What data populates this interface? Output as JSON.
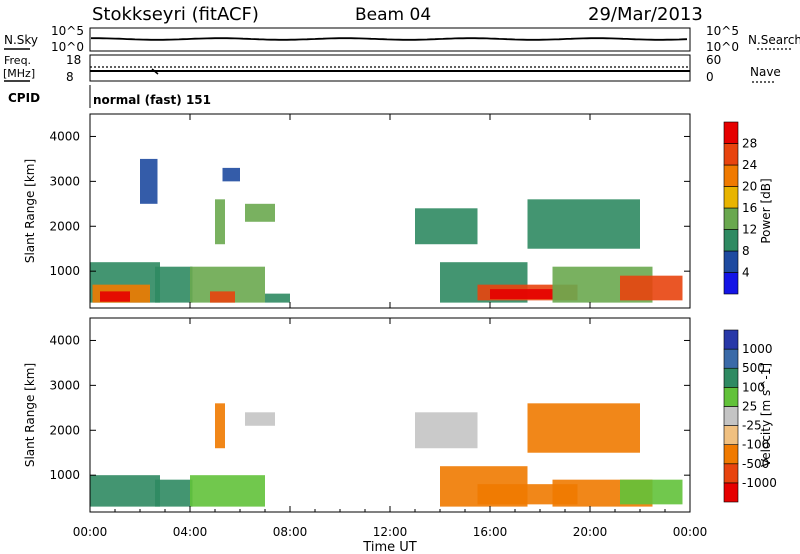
{
  "header": {
    "station": "Stokkseyri (fitACF)",
    "beam": "Beam 04",
    "date": "29/Mar/2013"
  },
  "summary_panels": {
    "nsky_label": "N.Sky",
    "nsky_ticks": [
      "10^5",
      "10^0"
    ],
    "nsearch_label": "N.Search",
    "nsearch_ticks": [
      "10^5",
      "10^0"
    ],
    "freq_label_1": "Freq.",
    "freq_label_2": "[MHz]",
    "freq_ticks": [
      "18",
      "8"
    ],
    "nave_label": "Nave",
    "nave_ticks": [
      "60",
      "0"
    ],
    "cpid_label": "CPID",
    "cpid_value": "normal (fast) 151"
  },
  "colors": {
    "power_scale": [
      "#1414e6",
      "#1e4aa0",
      "#2f8a62",
      "#6aa84f",
      "#e8b400",
      "#f07a00",
      "#e8440e",
      "#e60000"
    ],
    "velocity_scale": [
      "#2838a8",
      "#3a6aa8",
      "#2f8a62",
      "#62c23a",
      "#c4c4c4",
      "#f0c080",
      "#f07a00",
      "#e8440e",
      "#e60000"
    ]
  },
  "chart_data": [
    {
      "type": "heatmap",
      "name": "power",
      "ylabel": "Slant Range [km]",
      "yticks": [
        "1000",
        "2000",
        "3000",
        "4000"
      ],
      "ylim": [
        180,
        4500
      ],
      "xlim": [
        0,
        24
      ],
      "colorbar_label": "Power [dB]",
      "colorbar_ticks": [
        "4",
        "8",
        "12",
        "16",
        "20",
        "24",
        "28"
      ],
      "clim": [
        0,
        30
      ],
      "regions": [
        {
          "x": [
            0.0,
            2.8
          ],
          "y": [
            300,
            1200
          ],
          "v": 8
        },
        {
          "x": [
            0.1,
            2.4
          ],
          "y": [
            300,
            700
          ],
          "v": 22
        },
        {
          "x": [
            0.4,
            1.6
          ],
          "y": [
            320,
            550
          ],
          "v": 28
        },
        {
          "x": [
            2.6,
            4.1
          ],
          "y": [
            300,
            1100
          ],
          "v": 8
        },
        {
          "x": [
            2.0,
            2.7
          ],
          "y": [
            2500,
            3500
          ],
          "v": 6
        },
        {
          "x": [
            4.0,
            7.0
          ],
          "y": [
            300,
            1100
          ],
          "v": 12
        },
        {
          "x": [
            4.8,
            5.8
          ],
          "y": [
            300,
            550
          ],
          "v": 26
        },
        {
          "x": [
            5.0,
            5.4
          ],
          "y": [
            1600,
            2600
          ],
          "v": 12
        },
        {
          "x": [
            5.3,
            6.0
          ],
          "y": [
            3000,
            3300
          ],
          "v": 6
        },
        {
          "x": [
            6.2,
            7.4
          ],
          "y": [
            2100,
            2500
          ],
          "v": 12
        },
        {
          "x": [
            7.0,
            8.0
          ],
          "y": [
            300,
            500
          ],
          "v": 10
        },
        {
          "x": [
            13.0,
            15.5
          ],
          "y": [
            1600,
            2400
          ],
          "v": 10
        },
        {
          "x": [
            14.0,
            17.5
          ],
          "y": [
            300,
            1200
          ],
          "v": 10
        },
        {
          "x": [
            15.5,
            19.5
          ],
          "y": [
            350,
            700
          ],
          "v": 26
        },
        {
          "x": [
            16.0,
            18.5
          ],
          "y": [
            380,
            600
          ],
          "v": 29
        },
        {
          "x": [
            17.5,
            22.0
          ],
          "y": [
            1500,
            2600
          ],
          "v": 10
        },
        {
          "x": [
            18.5,
            22.5
          ],
          "y": [
            300,
            1100
          ],
          "v": 14
        },
        {
          "x": [
            21.2,
            23.7
          ],
          "y": [
            350,
            900
          ],
          "v": 24
        }
      ]
    },
    {
      "type": "heatmap",
      "name": "velocity",
      "ylabel": "Slant Range [km]",
      "yticks": [
        "1000",
        "2000",
        "3000",
        "4000"
      ],
      "ylim": [
        180,
        4500
      ],
      "xlim": [
        0,
        24
      ],
      "xlabel": "Time UT",
      "xticks": [
        "00:00",
        "04:00",
        "08:00",
        "12:00",
        "16:00",
        "20:00",
        "00:00"
      ],
      "colorbar_label": "Velocity [m s^-1]",
      "colorbar_ticks": [
        "1000",
        "500",
        "100",
        "25",
        "-25",
        "-100",
        "-500",
        "-1000"
      ],
      "regions": [
        {
          "x": [
            0.0,
            2.8
          ],
          "y": [
            300,
            1000
          ],
          "v": 100
        },
        {
          "x": [
            2.6,
            4.1
          ],
          "y": [
            300,
            900
          ],
          "v": 100
        },
        {
          "x": [
            4.0,
            7.0
          ],
          "y": [
            300,
            1000
          ],
          "v": 80
        },
        {
          "x": [
            5.0,
            5.4
          ],
          "y": [
            1600,
            2600
          ],
          "v": -200
        },
        {
          "x": [
            6.2,
            7.4
          ],
          "y": [
            2100,
            2400
          ],
          "v": 0
        },
        {
          "x": [
            13.0,
            15.5
          ],
          "y": [
            1600,
            2400
          ],
          "v": 0
        },
        {
          "x": [
            14.0,
            17.5
          ],
          "y": [
            300,
            1200
          ],
          "v": -200
        },
        {
          "x": [
            15.5,
            19.5
          ],
          "y": [
            350,
            800
          ],
          "v": -250
        },
        {
          "x": [
            17.5,
            22.0
          ],
          "y": [
            1500,
            2600
          ],
          "v": -150
        },
        {
          "x": [
            18.5,
            22.5
          ],
          "y": [
            300,
            900
          ],
          "v": -200
        },
        {
          "x": [
            21.2,
            23.7
          ],
          "y": [
            350,
            900
          ],
          "v": 60
        }
      ]
    }
  ]
}
